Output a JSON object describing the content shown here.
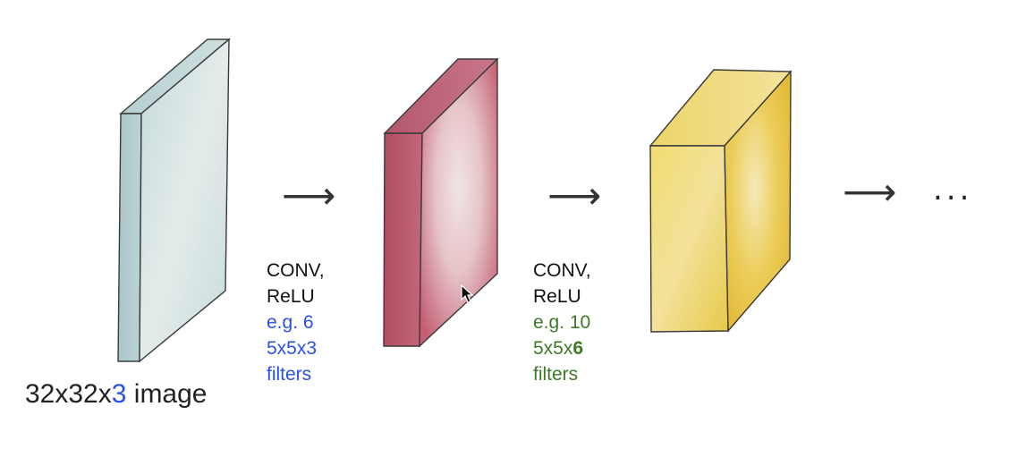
{
  "layers": [
    {
      "name": "input",
      "label_prefix": "32x32x",
      "label_depth": "3",
      "label_suffix": " image"
    },
    {
      "name": "conv1",
      "op_line1": "CONV,",
      "op_line2": "ReLU",
      "filters_line1": "e.g. 6",
      "filters_line2": "5x5x3",
      "filters_line3": "filters"
    },
    {
      "name": "conv2",
      "op_line1": "CONV,",
      "op_line2": "ReLU",
      "filters_line1": "e.g. 10",
      "filters_line2_prefix": "5x5x",
      "filters_line2_bold": "6",
      "filters_line3": "filters"
    }
  ],
  "continuation": "...",
  "arrow_glyph": "⟶",
  "colors": {
    "input_volume": "#c9dcdc",
    "conv1_volume": "#c86d80",
    "conv2_volume": "#edd15e",
    "filters_blue": "#2b50e8",
    "filters_green": "#3d7a28"
  }
}
